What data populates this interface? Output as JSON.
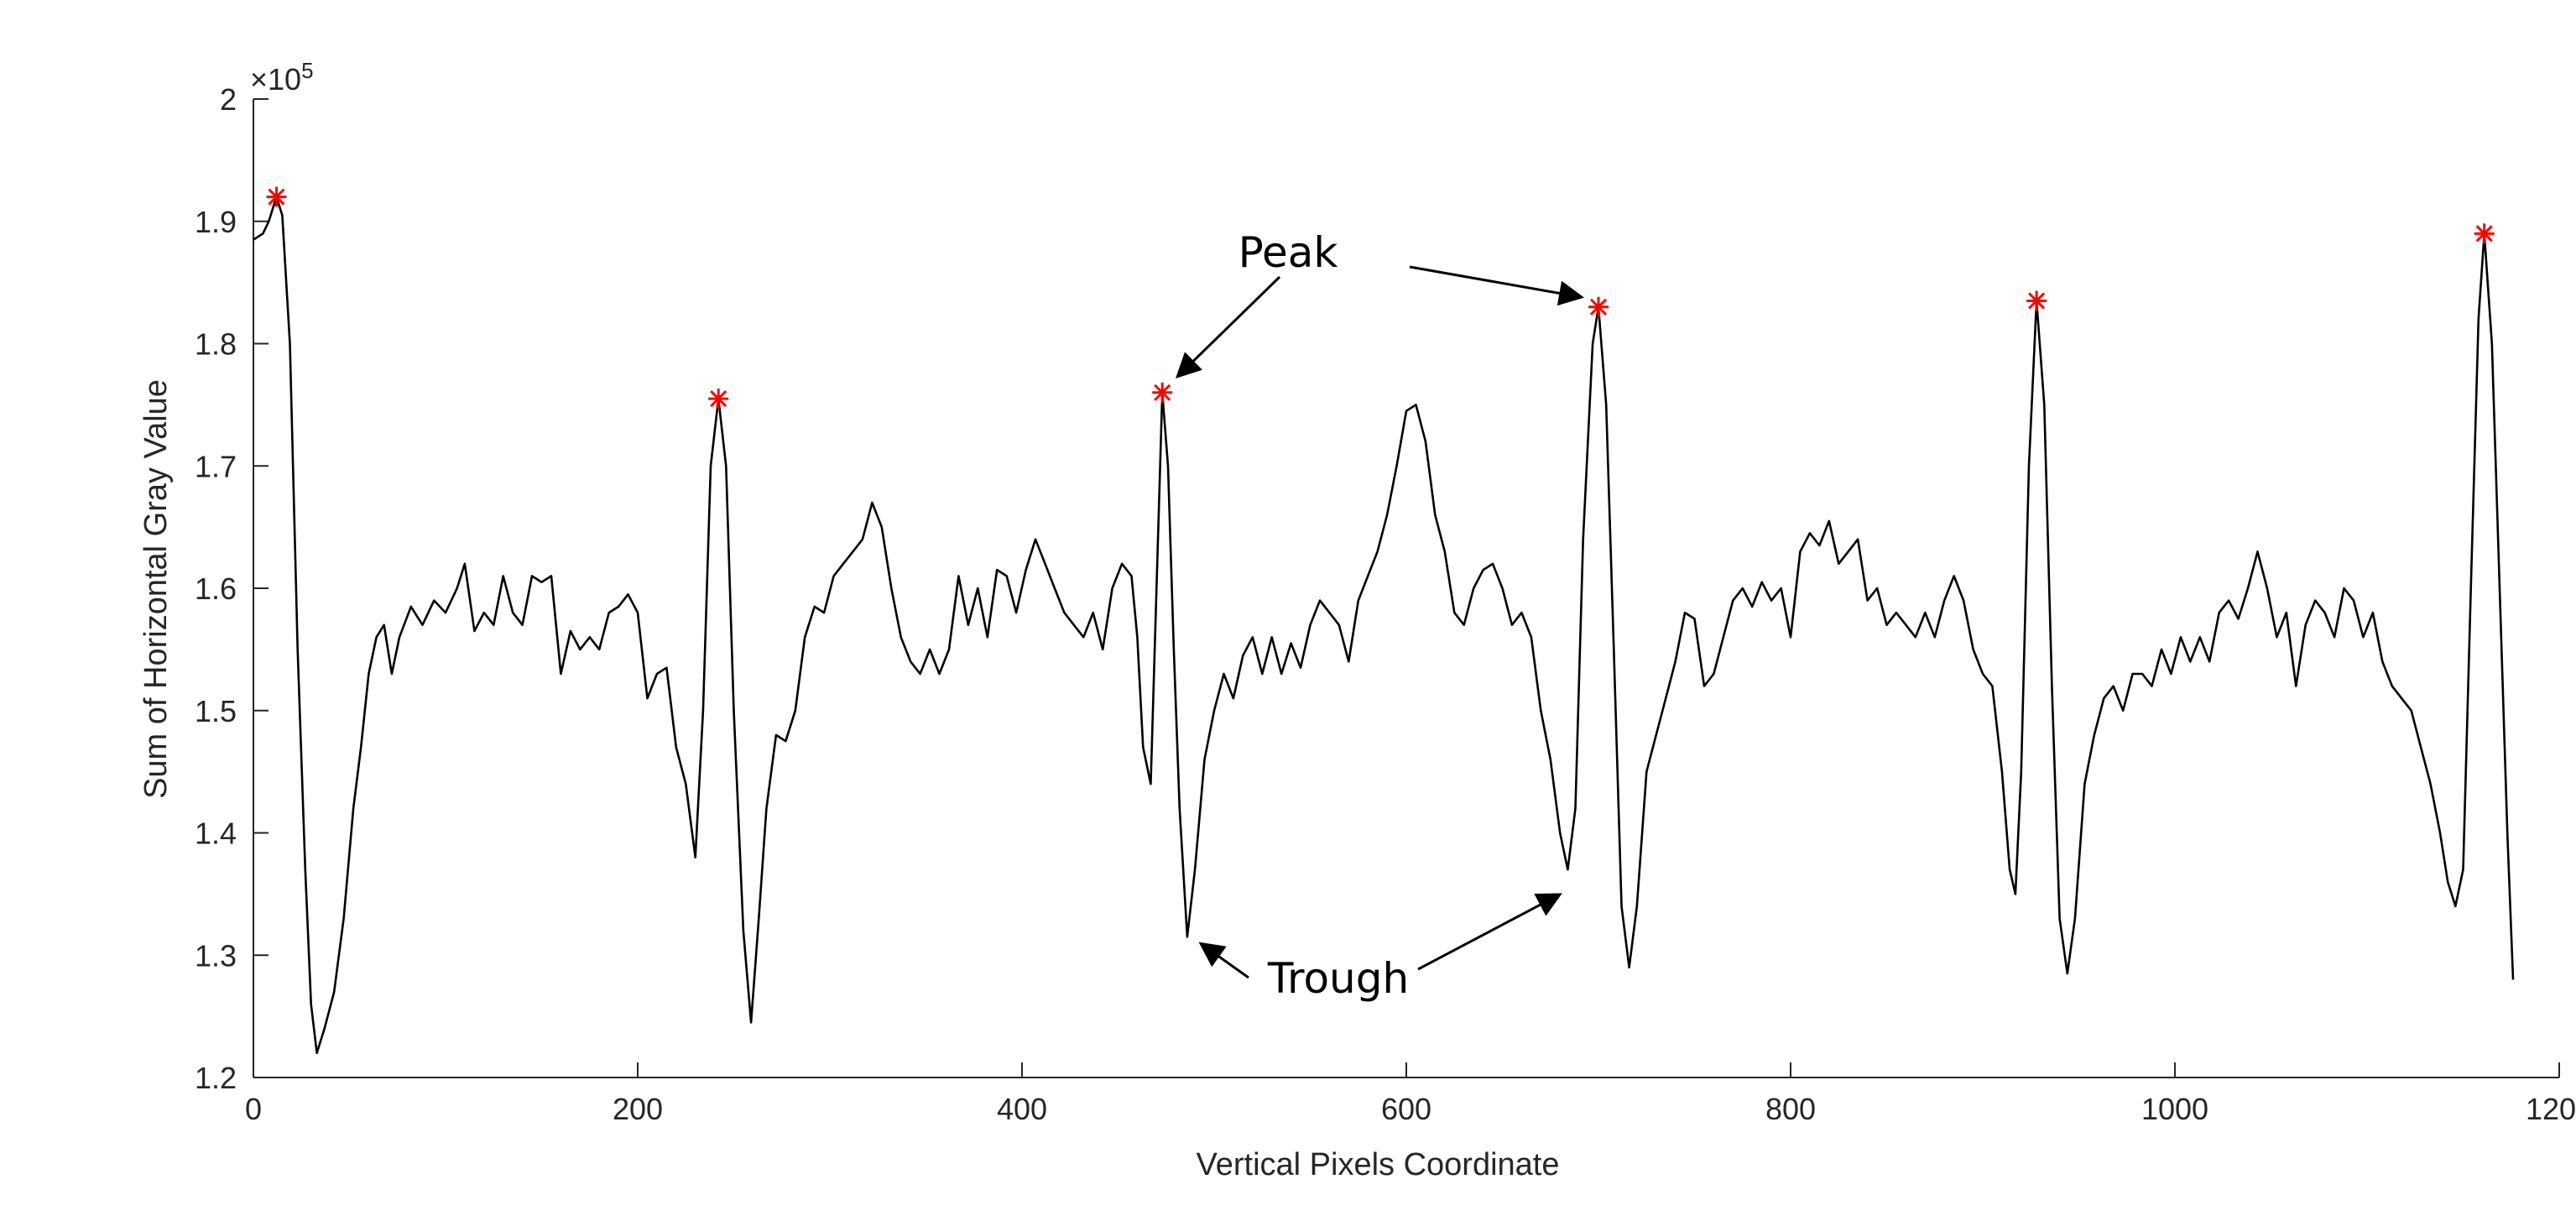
{
  "chart_data": {
    "type": "line",
    "title": "",
    "xlabel": "Vertical Pixels Coordinate",
    "ylabel": "Sum of Horizontal Gray Value",
    "xlim": [
      0,
      1200
    ],
    "ylim": [
      1.2,
      2.0
    ],
    "y_exponent_label": "×10",
    "y_exponent_power": "5",
    "x_ticks": [
      0,
      200,
      400,
      600,
      800,
      1000,
      1200
    ],
    "x_tick_labels": [
      "0",
      "200",
      "400",
      "600",
      "800",
      "1000",
      "1200"
    ],
    "y_ticks": [
      1.2,
      1.3,
      1.4,
      1.5,
      1.6,
      1.7,
      1.8,
      1.9,
      2.0
    ],
    "y_tick_labels": [
      "1.2",
      "1.3",
      "1.4",
      "1.5",
      "1.6",
      "1.7",
      "1.8",
      "1.9",
      "2"
    ],
    "grid": false,
    "series": [
      {
        "color": "#000000",
        "points": [
          [
            0,
            1.885
          ],
          [
            5,
            1.89
          ],
          [
            8,
            1.9
          ],
          [
            12,
            1.92
          ],
          [
            15,
            1.905
          ],
          [
            19,
            1.8
          ],
          [
            23,
            1.55
          ],
          [
            27,
            1.37
          ],
          [
            30,
            1.26
          ],
          [
            33,
            1.22
          ],
          [
            37,
            1.24
          ],
          [
            42,
            1.27
          ],
          [
            47,
            1.33
          ],
          [
            52,
            1.42
          ],
          [
            56,
            1.47
          ],
          [
            60,
            1.53
          ],
          [
            64,
            1.56
          ],
          [
            68,
            1.57
          ],
          [
            72,
            1.53
          ],
          [
            76,
            1.56
          ],
          [
            82,
            1.585
          ],
          [
            88,
            1.57
          ],
          [
            94,
            1.59
          ],
          [
            100,
            1.58
          ],
          [
            106,
            1.6
          ],
          [
            110,
            1.62
          ],
          [
            115,
            1.565
          ],
          [
            120,
            1.58
          ],
          [
            125,
            1.57
          ],
          [
            130,
            1.61
          ],
          [
            135,
            1.58
          ],
          [
            140,
            1.57
          ],
          [
            145,
            1.61
          ],
          [
            150,
            1.605
          ],
          [
            155,
            1.61
          ],
          [
            160,
            1.53
          ],
          [
            165,
            1.565
          ],
          [
            170,
            1.55
          ],
          [
            175,
            1.56
          ],
          [
            180,
            1.55
          ],
          [
            185,
            1.58
          ],
          [
            190,
            1.585
          ],
          [
            195,
            1.595
          ],
          [
            200,
            1.58
          ],
          [
            205,
            1.51
          ],
          [
            210,
            1.53
          ],
          [
            215,
            1.535
          ],
          [
            220,
            1.47
          ],
          [
            225,
            1.44
          ],
          [
            230,
            1.38
          ],
          [
            234,
            1.5
          ],
          [
            238,
            1.7
          ],
          [
            242,
            1.755
          ],
          [
            246,
            1.7
          ],
          [
            250,
            1.5
          ],
          [
            255,
            1.32
          ],
          [
            259,
            1.245
          ],
          [
            263,
            1.33
          ],
          [
            267,
            1.42
          ],
          [
            272,
            1.48
          ],
          [
            277,
            1.475
          ],
          [
            282,
            1.5
          ],
          [
            287,
            1.56
          ],
          [
            292,
            1.585
          ],
          [
            297,
            1.58
          ],
          [
            302,
            1.61
          ],
          [
            307,
            1.62
          ],
          [
            312,
            1.63
          ],
          [
            317,
            1.64
          ],
          [
            322,
            1.67
          ],
          [
            327,
            1.65
          ],
          [
            332,
            1.6
          ],
          [
            337,
            1.56
          ],
          [
            342,
            1.54
          ],
          [
            347,
            1.53
          ],
          [
            352,
            1.55
          ],
          [
            357,
            1.53
          ],
          [
            362,
            1.55
          ],
          [
            367,
            1.61
          ],
          [
            372,
            1.57
          ],
          [
            377,
            1.6
          ],
          [
            382,
            1.56
          ],
          [
            387,
            1.615
          ],
          [
            392,
            1.61
          ],
          [
            397,
            1.58
          ],
          [
            402,
            1.615
          ],
          [
            407,
            1.64
          ],
          [
            412,
            1.62
          ],
          [
            417,
            1.6
          ],
          [
            422,
            1.58
          ],
          [
            427,
            1.57
          ],
          [
            432,
            1.56
          ],
          [
            437,
            1.58
          ],
          [
            442,
            1.55
          ],
          [
            447,
            1.6
          ],
          [
            452,
            1.62
          ],
          [
            457,
            1.61
          ],
          [
            460,
            1.56
          ],
          [
            463,
            1.47
          ],
          [
            467,
            1.44
          ],
          [
            470,
            1.6
          ],
          [
            473,
            1.76
          ],
          [
            476,
            1.7
          ],
          [
            479,
            1.55
          ],
          [
            482,
            1.42
          ],
          [
            486,
            1.315
          ],
          [
            490,
            1.37
          ],
          [
            495,
            1.46
          ],
          [
            500,
            1.5
          ],
          [
            505,
            1.53
          ],
          [
            510,
            1.51
          ],
          [
            515,
            1.545
          ],
          [
            520,
            1.56
          ],
          [
            525,
            1.53
          ],
          [
            530,
            1.56
          ],
          [
            535,
            1.53
          ],
          [
            540,
            1.555
          ],
          [
            545,
            1.535
          ],
          [
            550,
            1.57
          ],
          [
            555,
            1.59
          ],
          [
            560,
            1.58
          ],
          [
            565,
            1.57
          ],
          [
            570,
            1.54
          ],
          [
            575,
            1.59
          ],
          [
            580,
            1.61
          ],
          [
            585,
            1.63
          ],
          [
            590,
            1.66
          ],
          [
            595,
            1.7
          ],
          [
            600,
            1.745
          ],
          [
            605,
            1.75
          ],
          [
            610,
            1.72
          ],
          [
            615,
            1.66
          ],
          [
            620,
            1.63
          ],
          [
            625,
            1.58
          ],
          [
            630,
            1.57
          ],
          [
            635,
            1.6
          ],
          [
            640,
            1.615
          ],
          [
            645,
            1.62
          ],
          [
            650,
            1.6
          ],
          [
            655,
            1.57
          ],
          [
            660,
            1.58
          ],
          [
            665,
            1.56
          ],
          [
            670,
            1.5
          ],
          [
            675,
            1.46
          ],
          [
            680,
            1.4
          ],
          [
            684,
            1.37
          ],
          [
            688,
            1.42
          ],
          [
            692,
            1.64
          ],
          [
            697,
            1.8
          ],
          [
            700,
            1.83
          ],
          [
            704,
            1.75
          ],
          [
            708,
            1.55
          ],
          [
            712,
            1.34
          ],
          [
            716,
            1.29
          ],
          [
            720,
            1.34
          ],
          [
            725,
            1.45
          ],
          [
            730,
            1.48
          ],
          [
            735,
            1.51
          ],
          [
            740,
            1.54
          ],
          [
            745,
            1.58
          ],
          [
            750,
            1.575
          ],
          [
            755,
            1.52
          ],
          [
            760,
            1.53
          ],
          [
            765,
            1.56
          ],
          [
            770,
            1.59
          ],
          [
            775,
            1.6
          ],
          [
            780,
            1.585
          ],
          [
            785,
            1.605
          ],
          [
            790,
            1.59
          ],
          [
            795,
            1.6
          ],
          [
            800,
            1.56
          ],
          [
            805,
            1.63
          ],
          [
            810,
            1.645
          ],
          [
            815,
            1.635
          ],
          [
            820,
            1.655
          ],
          [
            825,
            1.62
          ],
          [
            830,
            1.63
          ],
          [
            835,
            1.64
          ],
          [
            840,
            1.59
          ],
          [
            845,
            1.6
          ],
          [
            850,
            1.57
          ],
          [
            855,
            1.58
          ],
          [
            860,
            1.57
          ],
          [
            865,
            1.56
          ],
          [
            870,
            1.58
          ],
          [
            875,
            1.56
          ],
          [
            880,
            1.59
          ],
          [
            885,
            1.61
          ],
          [
            890,
            1.59
          ],
          [
            895,
            1.55
          ],
          [
            900,
            1.53
          ],
          [
            905,
            1.52
          ],
          [
            910,
            1.45
          ],
          [
            914,
            1.37
          ],
          [
            917,
            1.35
          ],
          [
            920,
            1.45
          ],
          [
            924,
            1.7
          ],
          [
            928,
            1.835
          ],
          [
            932,
            1.75
          ],
          [
            936,
            1.52
          ],
          [
            940,
            1.33
          ],
          [
            944,
            1.285
          ],
          [
            948,
            1.33
          ],
          [
            953,
            1.44
          ],
          [
            958,
            1.48
          ],
          [
            963,
            1.51
          ],
          [
            968,
            1.52
          ],
          [
            973,
            1.5
          ],
          [
            978,
            1.53
          ],
          [
            983,
            1.53
          ],
          [
            988,
            1.52
          ],
          [
            993,
            1.55
          ],
          [
            998,
            1.53
          ],
          [
            1003,
            1.56
          ],
          [
            1008,
            1.54
          ],
          [
            1013,
            1.56
          ],
          [
            1018,
            1.54
          ],
          [
            1023,
            1.58
          ],
          [
            1028,
            1.59
          ],
          [
            1033,
            1.575
          ],
          [
            1038,
            1.6
          ],
          [
            1043,
            1.63
          ],
          [
            1048,
            1.6
          ],
          [
            1053,
            1.56
          ],
          [
            1058,
            1.58
          ],
          [
            1063,
            1.52
          ],
          [
            1068,
            1.57
          ],
          [
            1073,
            1.59
          ],
          [
            1078,
            1.58
          ],
          [
            1083,
            1.56
          ],
          [
            1088,
            1.6
          ],
          [
            1093,
            1.59
          ],
          [
            1098,
            1.56
          ],
          [
            1103,
            1.58
          ],
          [
            1108,
            1.54
          ],
          [
            1113,
            1.52
          ],
          [
            1118,
            1.51
          ],
          [
            1123,
            1.5
          ],
          [
            1128,
            1.47
          ],
          [
            1133,
            1.44
          ],
          [
            1138,
            1.4
          ],
          [
            1142,
            1.36
          ],
          [
            1146,
            1.34
          ],
          [
            1150,
            1.37
          ],
          [
            1154,
            1.6
          ],
          [
            1158,
            1.82
          ],
          [
            1161,
            1.89
          ],
          [
            1165,
            1.8
          ],
          [
            1169,
            1.6
          ],
          [
            1173,
            1.4
          ],
          [
            1176,
            1.28
          ]
        ]
      }
    ],
    "markers": {
      "symbol": "*",
      "color": "#ff0000",
      "points": [
        [
          12,
          1.92
        ],
        [
          242,
          1.755
        ],
        [
          473,
          1.76
        ],
        [
          700,
          1.83
        ],
        [
          928,
          1.835
        ],
        [
          1161,
          1.89
        ]
      ]
    },
    "annotations": {
      "peak_label": "Peak",
      "trough_label": "Trough"
    }
  }
}
